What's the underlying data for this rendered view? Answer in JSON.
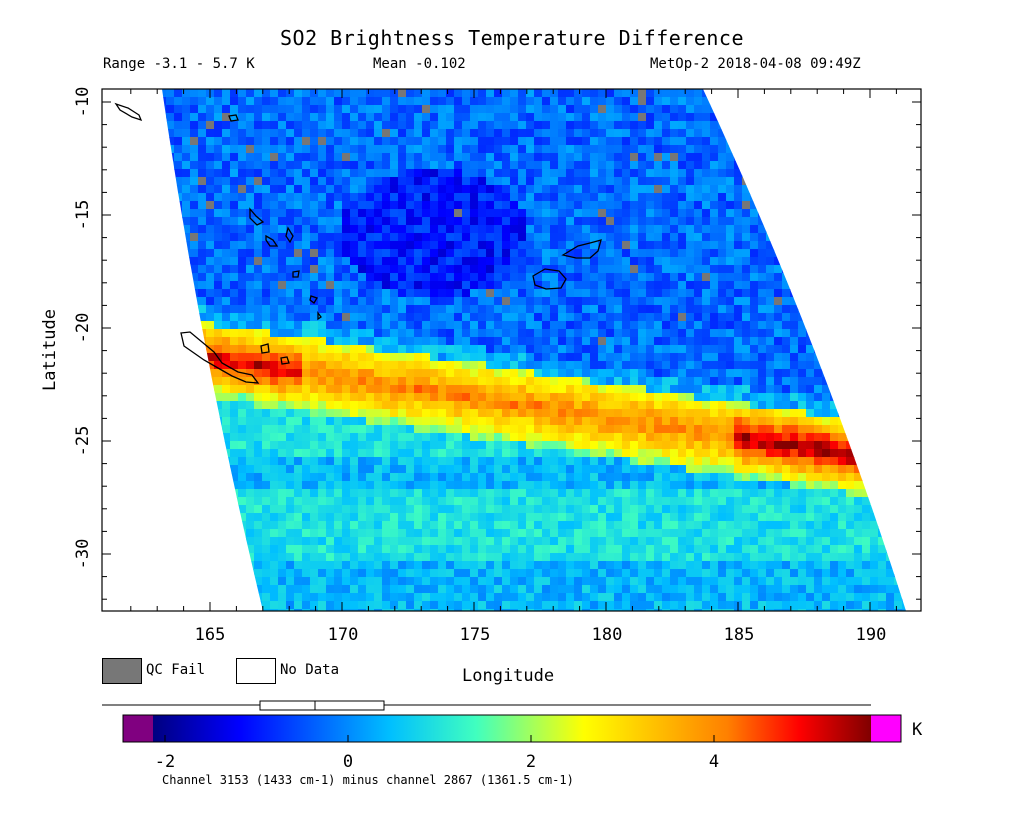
{
  "header": {
    "title": "SO2 Brightness Temperature Difference",
    "range": "Range -3.1 - 5.7 K",
    "mean": "Mean -0.102",
    "satellite_time": "MetOp-2 2018-04-08 09:49Z"
  },
  "axes": {
    "ylabel": "Latitude",
    "xlabel": "Longitude",
    "xticks": [
      "165",
      "170",
      "175",
      "180",
      "185",
      "190"
    ],
    "yticks": [
      "-10",
      "-15",
      "-20",
      "-25",
      "-30"
    ]
  },
  "legend": {
    "qc_fail": "QC Fail",
    "no_data": "No Data",
    "qc_color": "#777777",
    "no_data_color": "#ffffff"
  },
  "colorbar": {
    "ticks": [
      "-2",
      "0",
      "2",
      "4"
    ],
    "unit": "K",
    "under_color": "#800080",
    "over_color": "#ff00ff"
  },
  "footer": "Channel 3153 (1433 cm-1) minus channel 2867 (1361.5 cm-1)",
  "map": {
    "lon_range": [
      161,
      192
    ],
    "lat_range": [
      -32.5,
      -10
    ],
    "plume_axis": "high values along approx. 22.5S at 166E to 25S at 188E"
  }
}
